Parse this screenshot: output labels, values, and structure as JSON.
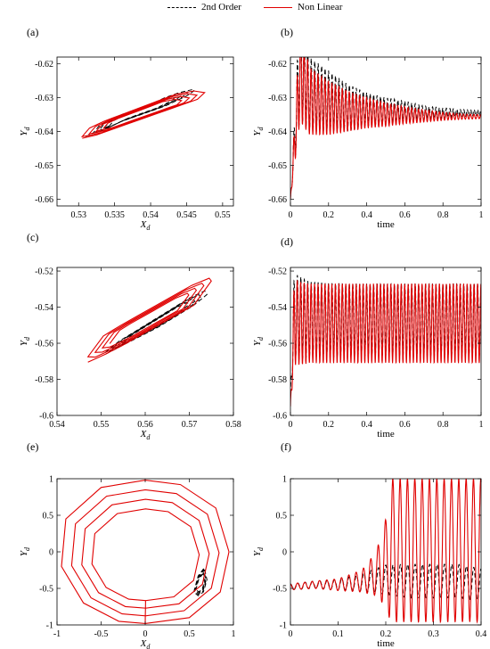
{
  "legend": {
    "entries": [
      "2nd Order",
      "Non Linear"
    ]
  },
  "colors": {
    "second_order": "#000000",
    "non_linear": "#e00000"
  },
  "chart_data": [
    {
      "panel": "(a)",
      "type": "line",
      "title": "",
      "xlabel": "X_d",
      "ylabel": "Y_d",
      "xlim": [
        0.527,
        0.5515
      ],
      "ylim": [
        -0.662,
        -0.618
      ],
      "xticks": [
        0.53,
        0.535,
        0.54,
        0.545,
        0.55
      ],
      "xticklabels": [
        "0.53",
        "0.535",
        "0.54",
        "0.545",
        "0.55"
      ],
      "yticks": [
        -0.62,
        -0.63,
        -0.64,
        -0.65,
        -0.66
      ],
      "yticklabels": [
        "-0.62",
        "-0.63",
        "-0.64",
        "-0.65",
        "-0.66"
      ],
      "series": [
        {
          "name": "2nd Order",
          "style": "dashed",
          "x": [
            0.531,
            0.532,
            0.533,
            0.5345,
            0.536,
            0.538,
            0.54,
            0.542,
            0.5435,
            0.545,
            0.546,
            0.546,
            0.544,
            0.542,
            0.54,
            0.538,
            0.536,
            0.5345,
            0.533,
            0.532
          ],
          "y": [
            -0.6415,
            -0.6405,
            -0.64,
            -0.6385,
            -0.637,
            -0.6355,
            -0.634,
            -0.6325,
            -0.631,
            -0.6295,
            -0.628,
            -0.6275,
            -0.6285,
            -0.63,
            -0.632,
            -0.6335,
            -0.635,
            -0.6365,
            -0.638,
            -0.6405
          ]
        },
        {
          "name": "Non Linear",
          "style": "solid",
          "x": [
            0.5305,
            0.5325,
            0.5345,
            0.5365,
            0.5385,
            0.5405,
            0.5425,
            0.5445,
            0.5465,
            0.5475,
            0.546,
            0.5435,
            0.541,
            0.5385,
            0.536,
            0.5335,
            0.5315,
            0.5305
          ],
          "y": [
            -0.642,
            -0.641,
            -0.6395,
            -0.638,
            -0.6365,
            -0.635,
            -0.6335,
            -0.632,
            -0.6305,
            -0.6285,
            -0.628,
            -0.629,
            -0.631,
            -0.633,
            -0.635,
            -0.637,
            -0.639,
            -0.6415
          ]
        }
      ]
    },
    {
      "panel": "(b)",
      "type": "line",
      "title": "",
      "xlabel": "time",
      "ylabel": "Y_d",
      "xlim": [
        0,
        1
      ],
      "ylim": [
        -0.662,
        -0.618
      ],
      "xticks": [
        0,
        0.2,
        0.4,
        0.6,
        0.8,
        1
      ],
      "xticklabels": [
        "0",
        "0.2",
        "0.4",
        "0.6",
        "0.8",
        "1"
      ],
      "yticks": [
        -0.62,
        -0.63,
        -0.64,
        -0.65,
        -0.66
      ],
      "yticklabels": [
        "-0.62",
        "-0.63",
        "-0.64",
        "-0.65",
        "-0.66"
      ],
      "series": [
        {
          "name": "2nd Order",
          "style": "dashed",
          "x": [
            0,
            0.05,
            0.1,
            0.2,
            0.3,
            0.4,
            0.5,
            0.6,
            0.7,
            0.8,
            0.9,
            1.0
          ],
          "y": [
            -0.66,
            -0.62,
            -0.629,
            -0.631,
            -0.633,
            -0.6335,
            -0.634,
            -0.634,
            -0.6345,
            -0.6345,
            -0.6345,
            -0.6345
          ],
          "amplitude": [
            0,
            0.016,
            0.011,
            0.009,
            0.007,
            0.005,
            0.004,
            0.003,
            0.002,
            0.0015,
            0.001,
            0.001
          ]
        },
        {
          "name": "Non Linear",
          "style": "solid",
          "x": [
            0,
            0.05,
            0.1,
            0.2,
            0.3,
            0.4,
            0.5,
            0.6,
            0.7,
            0.8,
            0.9,
            1.0
          ],
          "y": [
            -0.66,
            -0.623,
            -0.631,
            -0.633,
            -0.634,
            -0.6345,
            -0.635,
            -0.6352,
            -0.6354,
            -0.6355,
            -0.6356,
            -0.6356
          ],
          "amplitude": [
            0,
            0.014,
            0.01,
            0.008,
            0.006,
            0.0045,
            0.0035,
            0.0025,
            0.0018,
            0.0012,
            0.0008,
            0.0006
          ]
        }
      ]
    },
    {
      "panel": "(c)",
      "type": "line",
      "title": "",
      "xlabel": "X_d",
      "ylabel": "Y_d",
      "xlim": [
        0.54,
        0.58
      ],
      "ylim": [
        -0.6,
        -0.518
      ],
      "xticks": [
        0.54,
        0.55,
        0.56,
        0.57,
        0.58
      ],
      "xticklabels": [
        "0.54",
        "0.55",
        "0.56",
        "0.57",
        "0.58"
      ],
      "yticks": [
        -0.52,
        -0.54,
        -0.56,
        -0.58,
        -0.6
      ],
      "yticklabels": [
        "-0.52",
        "-0.54",
        "-0.56",
        "-0.58",
        "-0.6"
      ],
      "series": [
        {
          "name": "2nd Order",
          "style": "dashed",
          "x": [
            0.551,
            0.555,
            0.559,
            0.563,
            0.567,
            0.571,
            0.574,
            0.5735,
            0.57,
            0.566,
            0.562,
            0.558,
            0.554,
            0.551
          ],
          "y": [
            -0.566,
            -0.561,
            -0.556,
            -0.551,
            -0.545,
            -0.539,
            -0.533,
            -0.531,
            -0.535,
            -0.541,
            -0.547,
            -0.553,
            -0.559,
            -0.565
          ]
        },
        {
          "name": "Non Linear",
          "style": "solid",
          "x": [
            0.547,
            0.551,
            0.555,
            0.559,
            0.563,
            0.567,
            0.571,
            0.575,
            0.5745,
            0.5705,
            0.5665,
            0.5625,
            0.5585,
            0.5545,
            0.5505,
            0.547
          ],
          "y": [
            -0.5705,
            -0.566,
            -0.561,
            -0.5555,
            -0.55,
            -0.5445,
            -0.539,
            -0.5255,
            -0.524,
            -0.528,
            -0.5335,
            -0.539,
            -0.5445,
            -0.55,
            -0.556,
            -0.5675
          ]
        }
      ]
    },
    {
      "panel": "(d)",
      "type": "line",
      "title": "",
      "xlabel": "time",
      "ylabel": "Y_d",
      "xlim": [
        0,
        1
      ],
      "ylim": [
        -0.6,
        -0.518
      ],
      "xticks": [
        0,
        0.2,
        0.4,
        0.6,
        0.8,
        1
      ],
      "xticklabels": [
        "0",
        "0.2",
        "0.4",
        "0.6",
        "0.8",
        "1"
      ],
      "yticks": [
        -0.52,
        -0.54,
        -0.56,
        -0.58,
        -0.6
      ],
      "yticklabels": [
        "-0.52",
        "-0.54",
        "-0.56",
        "-0.58",
        "-0.6"
      ],
      "series": [
        {
          "name": "2nd Order",
          "style": "dashed",
          "x": [
            0,
            0.02,
            0.05,
            0.1,
            0.3,
            0.5,
            0.7,
            0.9,
            1.0
          ],
          "y": [
            -0.588,
            -0.545,
            -0.546,
            -0.547,
            -0.547,
            -0.547,
            -0.547,
            -0.547,
            -0.547
          ],
          "amplitude": [
            0,
            0.024,
            0.023,
            0.021,
            0.02,
            0.02,
            0.02,
            0.02,
            0.02
          ]
        },
        {
          "name": "Non Linear",
          "style": "solid",
          "x": [
            0,
            0.02,
            0.05,
            0.1,
            0.3,
            0.5,
            0.7,
            0.9,
            1.0
          ],
          "y": [
            -0.595,
            -0.548,
            -0.549,
            -0.549,
            -0.549,
            -0.549,
            -0.549,
            -0.549,
            -0.549
          ],
          "amplitude": [
            0,
            0.024,
            0.023,
            0.022,
            0.022,
            0.022,
            0.022,
            0.022,
            0.022
          ]
        }
      ]
    },
    {
      "panel": "(e)",
      "type": "line",
      "title": "",
      "xlabel": "X_d",
      "ylabel": "Y_d",
      "xlim": [
        -1,
        1
      ],
      "ylim": [
        -1,
        1
      ],
      "xticks": [
        -1,
        -0.5,
        0,
        0.5,
        1
      ],
      "xticklabels": [
        "-1",
        "-0.5",
        "0",
        "0.5",
        "1"
      ],
      "yticks": [
        1,
        0.5,
        0,
        -0.5,
        -1
      ],
      "yticklabels": [
        "1",
        "0.5",
        "0",
        "-0.5",
        "-1"
      ],
      "series": [
        {
          "name": "2nd Order",
          "style": "dashed",
          "x": [
            0.55,
            0.6,
            0.67,
            0.7,
            0.66,
            0.6,
            0.55
          ],
          "y": [
            -0.55,
            -0.33,
            -0.22,
            -0.38,
            -0.55,
            -0.6,
            -0.55
          ]
        },
        {
          "name": "Non Linear",
          "style": "solid",
          "x": [
            0,
            0.5,
            0.85,
            0.95,
            0.8,
            0.4,
            0,
            -0.5,
            -0.9,
            -0.95,
            -0.7,
            -0.3,
            0
          ],
          "y": [
            -0.98,
            -0.9,
            -0.55,
            0,
            0.6,
            0.92,
            0.98,
            0.88,
            0.45,
            -0.2,
            -0.7,
            -0.95,
            -0.98
          ]
        }
      ]
    },
    {
      "panel": "(f)",
      "type": "line",
      "title": "",
      "xlabel": "time",
      "ylabel": "Y_d",
      "xlim": [
        0,
        0.4
      ],
      "ylim": [
        -1,
        1
      ],
      "xticks": [
        0,
        0.1,
        0.2,
        0.3,
        0.4
      ],
      "xticklabels": [
        "0",
        "0.1",
        "0.2",
        "0.3",
        "0.4"
      ],
      "yticks": [
        1,
        0.5,
        0,
        -0.5,
        -1
      ],
      "yticklabels": [
        "1",
        "0.5",
        "0",
        "-0.5",
        "-1"
      ],
      "series": [
        {
          "name": "2nd Order",
          "style": "dashed",
          "x": [
            0,
            0.05,
            0.1,
            0.15,
            0.2,
            0.25,
            0.3,
            0.35,
            0.4
          ],
          "y": [
            -0.48,
            -0.45,
            -0.45,
            -0.42,
            -0.38,
            -0.4,
            -0.4,
            -0.4,
            -0.45
          ],
          "amplitude": [
            0.04,
            0.05,
            0.07,
            0.12,
            0.2,
            0.23,
            0.23,
            0.23,
            0.22
          ]
        },
        {
          "name": "Non Linear",
          "style": "solid",
          "x": [
            0,
            0.05,
            0.1,
            0.15,
            0.18,
            0.2,
            0.21,
            0.25,
            0.3,
            0.35,
            0.4
          ],
          "y": [
            -0.48,
            -0.45,
            -0.45,
            -0.4,
            -0.3,
            -0.15,
            0.02,
            0.02,
            0.02,
            0.02,
            0.02
          ],
          "amplitude": [
            0.04,
            0.05,
            0.08,
            0.15,
            0.3,
            0.6,
            0.98,
            0.98,
            0.98,
            0.98,
            0.98
          ]
        }
      ]
    }
  ]
}
